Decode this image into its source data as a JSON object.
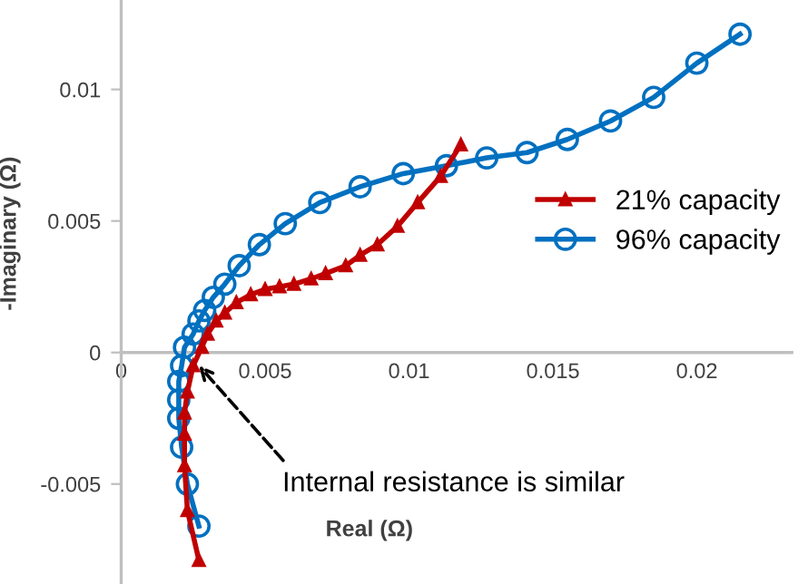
{
  "chart_data": {
    "type": "line",
    "xlabel": "Real (Ω)",
    "ylabel": "-Imaginary (Ω)",
    "xlim": [
      0,
      0.0233
    ],
    "ylim": [
      -0.0088,
      0.0134
    ],
    "xticks": [
      0,
      0.005,
      0.01,
      0.015,
      0.02
    ],
    "yticks": [
      -0.005,
      0,
      0.005,
      0.01
    ],
    "grid": false,
    "legend": "right",
    "annotations": [
      {
        "text": "Internal resistance is similar",
        "x": 0.0027,
        "y": -0.0005
      }
    ],
    "series": [
      {
        "name": "21% capacity",
        "color": "#c00000",
        "marker": "triangle",
        "x": [
          0.0027,
          0.0023,
          0.0022,
          0.0022,
          0.0022,
          0.0023,
          0.0025,
          0.0028,
          0.003,
          0.0033,
          0.0036,
          0.004,
          0.0045,
          0.005,
          0.0055,
          0.006,
          0.0066,
          0.0071,
          0.0078,
          0.0083,
          0.0089,
          0.0096,
          0.0103,
          0.0111,
          0.0118
        ],
        "values": [
          -0.0079,
          -0.006,
          -0.0043,
          -0.0031,
          -0.0023,
          -0.0015,
          -0.0005,
          0.0002,
          0.0007,
          0.0012,
          0.0015,
          0.0019,
          0.0022,
          0.0024,
          0.0025,
          0.0026,
          0.0028,
          0.003,
          0.0033,
          0.0037,
          0.0041,
          0.0048,
          0.0057,
          0.0067,
          0.0079
        ]
      },
      {
        "name": "96% capacity",
        "color": "#0070c0",
        "marker": "circle",
        "x": [
          0.0027,
          0.0023,
          0.0021,
          0.002,
          0.002,
          0.002,
          0.0021,
          0.0022,
          0.0025,
          0.0027,
          0.0029,
          0.0032,
          0.0036,
          0.0041,
          0.0048,
          0.0057,
          0.0069,
          0.0083,
          0.0098,
          0.0113,
          0.0127,
          0.0141,
          0.0155,
          0.017,
          0.0185,
          0.02,
          0.0215
        ],
        "values": [
          -0.0066,
          -0.005,
          -0.0036,
          -0.0025,
          -0.0018,
          -0.0011,
          -0.0005,
          0.0002,
          0.0007,
          0.0012,
          0.0016,
          0.0021,
          0.0026,
          0.0033,
          0.0041,
          0.0049,
          0.0057,
          0.0063,
          0.0068,
          0.0071,
          0.0074,
          0.0076,
          0.0081,
          0.0088,
          0.0097,
          0.011,
          0.0121
        ]
      }
    ]
  }
}
